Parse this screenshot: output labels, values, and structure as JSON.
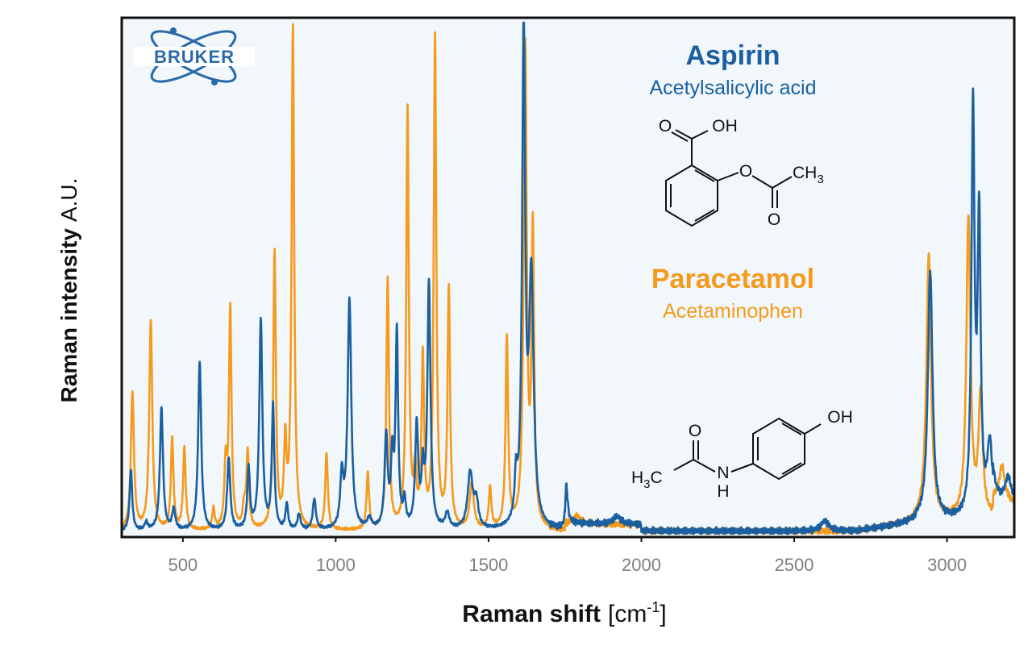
{
  "colors": {
    "aspirin": "#1a5fa0",
    "paracetamol": "#f59a1c",
    "plot_background": "#f2f7fc",
    "frame": "#111111",
    "logo": "#2a6aa8"
  },
  "logo": {
    "text": "BRUKER",
    "icon": "atom-orbit-icon"
  },
  "chart_data": {
    "type": "line",
    "xlabel": "Raman shift",
    "xlabel_unit": "[cm-1]",
    "xlabel_unit_prefix": "[cm",
    "xlabel_unit_sup": "-1",
    "xlabel_unit_suffix": "]",
    "ylabel": "Raman intensity",
    "ylabel_unit": "A.U.",
    "xlim": [
      300,
      3220
    ],
    "ylim": [
      0,
      100
    ],
    "xticks": [
      500,
      1000,
      1500,
      2000,
      2500,
      3000
    ],
    "xtick_labels": [
      "500",
      "1000",
      "1500",
      "2000",
      "2500",
      "3000"
    ],
    "legend_placement": "top-center",
    "series": [
      {
        "name": "Aspirin",
        "subtitle": "Acetylsalicylic acid",
        "color": "#1a5fa0",
        "peaks": [
          [
            330,
            12,
            5
          ],
          [
            380,
            1.5,
            6
          ],
          [
            430,
            24,
            6
          ],
          [
            470,
            4,
            6
          ],
          [
            555,
            33,
            6
          ],
          [
            650,
            14,
            6
          ],
          [
            715,
            12,
            5
          ],
          [
            755,
            41,
            6
          ],
          [
            795,
            24,
            5
          ],
          [
            840,
            5,
            5
          ],
          [
            880,
            3,
            6
          ],
          [
            930,
            6,
            6
          ],
          [
            1020,
            10,
            6
          ],
          [
            1045,
            45,
            7
          ],
          [
            1110,
            2,
            8
          ],
          [
            1165,
            18,
            6
          ],
          [
            1185,
            13,
            5
          ],
          [
            1200,
            38,
            5
          ],
          [
            1225,
            5,
            5
          ],
          [
            1265,
            20,
            6
          ],
          [
            1285,
            10,
            5
          ],
          [
            1305,
            48,
            6
          ],
          [
            1365,
            3,
            8
          ],
          [
            1440,
            11,
            10
          ],
          [
            1460,
            5,
            8
          ],
          [
            1590,
            8,
            5
          ],
          [
            1615,
            97,
            6
          ],
          [
            1640,
            48,
            9
          ],
          [
            1755,
            7,
            5
          ],
          [
            1920,
            1.5,
            15
          ],
          [
            2600,
            2,
            15
          ],
          [
            2945,
            49,
            9
          ],
          [
            3085,
            79,
            6
          ],
          [
            3105,
            57,
            6
          ],
          [
            3140,
            14,
            10
          ],
          [
            3200,
            5,
            12
          ]
        ]
      },
      {
        "name": "Paracetamol",
        "subtitle": "Acetaminophen",
        "color": "#f59a1c",
        "peaks": [
          [
            335,
            27,
            6
          ],
          [
            395,
            41,
            6
          ],
          [
            465,
            18,
            5
          ],
          [
            505,
            16,
            5
          ],
          [
            600,
            4,
            5
          ],
          [
            640,
            12,
            5
          ],
          [
            655,
            43,
            5
          ],
          [
            700,
            4,
            5
          ],
          [
            712,
            15,
            5
          ],
          [
            800,
            54,
            5
          ],
          [
            835,
            16,
            5
          ],
          [
            860,
            98,
            5
          ],
          [
            970,
            15,
            5
          ],
          [
            1105,
            11,
            5
          ],
          [
            1170,
            49,
            5
          ],
          [
            1235,
            82,
            5
          ],
          [
            1260,
            10,
            5
          ],
          [
            1285,
            33,
            5
          ],
          [
            1325,
            96,
            5
          ],
          [
            1370,
            47,
            5
          ],
          [
            1445,
            9,
            8
          ],
          [
            1505,
            8,
            5
          ],
          [
            1560,
            37,
            5
          ],
          [
            1620,
            94,
            6
          ],
          [
            1645,
            57,
            5
          ],
          [
            1790,
            1.5,
            12
          ],
          [
            2940,
            52,
            9
          ],
          [
            3070,
            59,
            8
          ],
          [
            3110,
            24,
            8
          ],
          [
            3180,
            7,
            12
          ]
        ]
      }
    ]
  },
  "molecules": {
    "aspirin": {
      "o_left": "O",
      "oh": "OH",
      "o_ester": "O",
      "ch3": "CH",
      "ch3_sub": "3",
      "o_carbonyl": "O"
    },
    "paracetamol": {
      "oh": "OH",
      "o": "O",
      "h3c": "H",
      "h3c_sub": "3",
      "h3c_c": "C",
      "n": "N",
      "h": "H"
    }
  }
}
